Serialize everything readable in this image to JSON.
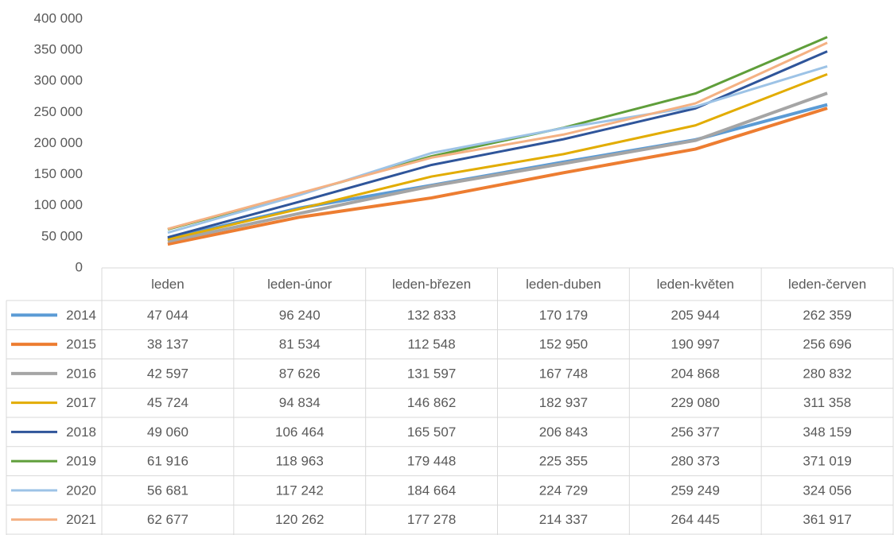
{
  "chart_data": {
    "type": "line",
    "categories": [
      "leden",
      "leden-únor",
      "leden-březen",
      "leden-duben",
      "leden-květen",
      "leden-červen"
    ],
    "ylim": [
      0,
      400000
    ],
    "yticks": [
      0,
      {
        "value": 50000,
        "label": "50 000"
      },
      {
        "value": 100000,
        "label": "100 000"
      },
      {
        "value": 150000,
        "label": "150 000"
      },
      {
        "value": 200000,
        "label": "200 000"
      },
      {
        "value": 250000,
        "label": "250 000"
      },
      {
        "value": 300000,
        "label": "300 000"
      },
      {
        "value": 350000,
        "label": "350 000"
      },
      {
        "value": 400000,
        "label": "400 000"
      }
    ],
    "grid": false,
    "series": [
      {
        "name": "2014",
        "color": "#5b9bd5",
        "width": 4,
        "values": [
          47044,
          96240,
          132833,
          170179,
          205944,
          262359
        ],
        "value_labels": [
          "47 044",
          "96 240",
          "132 833",
          "170 179",
          "205 944",
          "262 359"
        ]
      },
      {
        "name": "2015",
        "color": "#ed7d31",
        "width": 4,
        "values": [
          38137,
          81534,
          112548,
          152950,
          190997,
          256696
        ],
        "value_labels": [
          "38 137",
          "81 534",
          "112 548",
          "152 950",
          "190 997",
          "256 696"
        ]
      },
      {
        "name": "2016",
        "color": "#a5a5a5",
        "width": 4,
        "values": [
          42597,
          87626,
          131597,
          167748,
          204868,
          280832
        ],
        "value_labels": [
          "42 597",
          "87 626",
          "131 597",
          "167 748",
          "204 868",
          "280 832"
        ]
      },
      {
        "name": "2017",
        "color": "#e2ac00",
        "width": 3,
        "values": [
          45724,
          94834,
          146862,
          182937,
          229080,
          311358
        ],
        "value_labels": [
          "45 724",
          "94 834",
          "146 862",
          "182 937",
          "229 080",
          "311 358"
        ]
      },
      {
        "name": "2018",
        "color": "#2f559a",
        "width": 3,
        "values": [
          49060,
          106464,
          165507,
          206843,
          256377,
          348159
        ],
        "value_labels": [
          "49 060",
          "106 464",
          "165 507",
          "206 843",
          "256 377",
          "348 159"
        ]
      },
      {
        "name": "2019",
        "color": "#5f9e3a",
        "width": 3,
        "values": [
          61916,
          118963,
          179448,
          225355,
          280373,
          371019
        ],
        "value_labels": [
          "61 916",
          "118 963",
          "179 448",
          "225 355",
          "280 373",
          "371 019"
        ]
      },
      {
        "name": "2020",
        "color": "#9dc3e6",
        "width": 3,
        "values": [
          56681,
          117242,
          184664,
          224729,
          259249,
          324056
        ],
        "value_labels": [
          "56 681",
          "117 242",
          "184 664",
          "224 729",
          "259 249",
          "324 056"
        ]
      },
      {
        "name": "2021",
        "color": "#f4b183",
        "width": 3,
        "values": [
          62677,
          120262,
          177278,
          214337,
          264445,
          361917
        ],
        "value_labels": [
          "62 677",
          "120 262",
          "177 278",
          "214 337",
          "264 445",
          "361 917"
        ]
      }
    ]
  }
}
